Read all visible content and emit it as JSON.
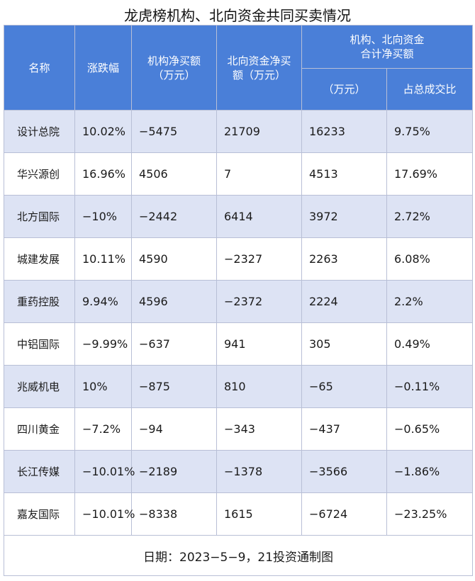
{
  "title": "龙虎榜机构、北向资金共同买卖情况",
  "headers": {
    "name": "名称",
    "change": "涨跌幅",
    "inst_line1": "机构净买额",
    "inst_line2": "（万元）",
    "north_line1": "北向资金净买",
    "north_line2": "额（万元）",
    "combined_line1": "机构、北向资金",
    "combined_line2": "合计净买额",
    "combined_unit": "（万元）",
    "share": "占总成交比"
  },
  "rows": [
    {
      "name": "设计总院",
      "change": "10.02%",
      "inst": "−5475",
      "north": "21709",
      "total": "16233",
      "share": "9.75%"
    },
    {
      "name": "华兴源创",
      "change": "16.96%",
      "inst": "4506",
      "north": "7",
      "total": "4513",
      "share": "17.69%"
    },
    {
      "name": "北方国际",
      "change": "−10%",
      "inst": "−2442",
      "north": "6414",
      "total": "3972",
      "share": "2.72%"
    },
    {
      "name": "城建发展",
      "change": "10.11%",
      "inst": "4590",
      "north": "−2327",
      "total": "2263",
      "share": "6.08%"
    },
    {
      "name": "重药控股",
      "change": "9.94%",
      "inst": "4596",
      "north": "−2372",
      "total": "2224",
      "share": "2.2%"
    },
    {
      "name": "中铝国际",
      "change": "−9.99%",
      "inst": "−637",
      "north": "941",
      "total": "305",
      "share": "0.49%"
    },
    {
      "name": "兆威机电",
      "change": "10%",
      "inst": "−875",
      "north": "810",
      "total": "−65",
      "share": "−0.11%"
    },
    {
      "name": "四川黄金",
      "change": "−7.2%",
      "inst": "−94",
      "north": "−343",
      "total": "−437",
      "share": "−0.65%"
    },
    {
      "name": "长江传媒",
      "change": "−10.01%",
      "inst": "−2189",
      "north": "−1378",
      "total": "−3566",
      "share": "−1.86%"
    },
    {
      "name": "嘉友国际",
      "change": "−10.01%",
      "inst": "−8338",
      "north": "1615",
      "total": "−6724",
      "share": "−23.25%"
    }
  ],
  "footer": "日期：2023−5−9，21投资通制图",
  "colors": {
    "header_bg": "#4a7fd8",
    "stripe_bg": "#dde3f4",
    "border": "#b8bfd6"
  }
}
